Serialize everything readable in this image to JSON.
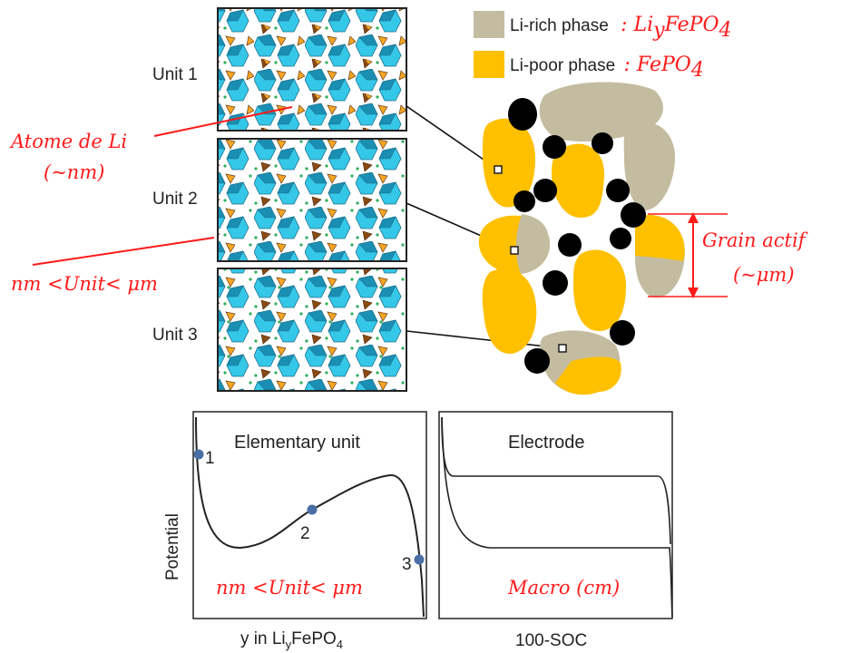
{
  "units": [
    {
      "label": "Unit 1"
    },
    {
      "label": "Unit 2"
    },
    {
      "label": "Unit 3"
    }
  ],
  "legend": [
    {
      "label": "Li-rich phase",
      "formula": ": Li_yFePO_4",
      "formula_main": ": Li",
      "formula_sub1": "y",
      "formula_mid": "FePO",
      "formula_sub2": "4",
      "color": "#c4bca0"
    },
    {
      "label": "Li-poor phase",
      "formula": ": FePO_4",
      "formula_main": ": FePO",
      "formula_sub2": "4",
      "color": "#ffc000"
    }
  ],
  "annotations": {
    "atom_li": "Atome de Li",
    "atom_li_scale": "(~nm)",
    "unit_scale": "nm <Unit< μm",
    "grain_actif": "Grain actif",
    "grain_scale": "(~μm)"
  },
  "plot_left": {
    "title": "Elementary unit",
    "ylabel": "Potential",
    "xlabel": "y in Li_yFePO_4",
    "xlabel_main": "y in Li",
    "xlabel_sub": "y",
    "xlabel_tail": "FePO",
    "xlabel_sub2": "4",
    "scale_label": "nm <Unit< μm",
    "points": [
      {
        "label": "1"
      },
      {
        "label": "2"
      },
      {
        "label": "3"
      }
    ]
  },
  "plot_right": {
    "title": "Electrode",
    "xlabel": "100-SOC",
    "scale_label": "Macro (cm)"
  },
  "colors": {
    "octahedra": "#35c7e8",
    "octahedra_dark": "#1a8fb3",
    "tetra": "#f5a623",
    "tetra_dark": "#8a4a12",
    "li_rich": "#c4bca0",
    "li_poor": "#ffc000",
    "carbon": "#000000",
    "annotation": "#ff1a1a",
    "point": "#4a6fa5"
  }
}
